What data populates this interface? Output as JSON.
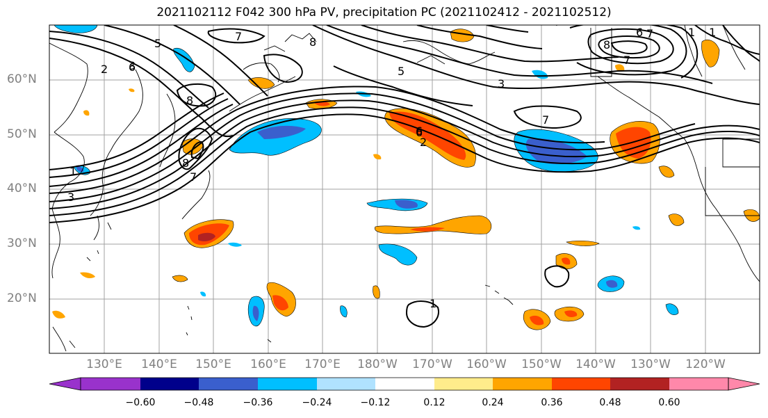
{
  "title": "2021102112 F042 300 hPa PV, precipitation PC (2021102412 - 2021102512)",
  "lat_labels": [
    "60°N",
    "50°N",
    "40°N",
    "30°N",
    "20°N"
  ],
  "lon_labels": [
    "130°E",
    "140°E",
    "150°E",
    "160°E",
    "170°E",
    "180°W",
    "170°W",
    "160°W",
    "150°W",
    "140°W",
    "130°W",
    "120°W"
  ],
  "colorbar": {
    "colors": [
      "#9932cc",
      "#00008b",
      "#3a5fcd",
      "#00bfff",
      "#b0e2ff",
      "#ffffff",
      "#ffec8b",
      "#ffa500",
      "#ff4500",
      "#b22222",
      "#ff88aa"
    ],
    "ticks": [
      "−0.60",
      "−0.48",
      "−0.36",
      "−0.24",
      "−0.12",
      "0.12",
      "0.24",
      "0.36",
      "0.48",
      "0.60"
    ]
  },
  "contour_labels": [
    "2",
    "3",
    "5",
    "6",
    "7",
    "8",
    "1",
    "7",
    "8",
    "5",
    "6",
    "3",
    "6",
    "7",
    "8",
    "7",
    "6",
    "7",
    "8",
    "1",
    "3",
    "1",
    "2",
    "1"
  ]
}
